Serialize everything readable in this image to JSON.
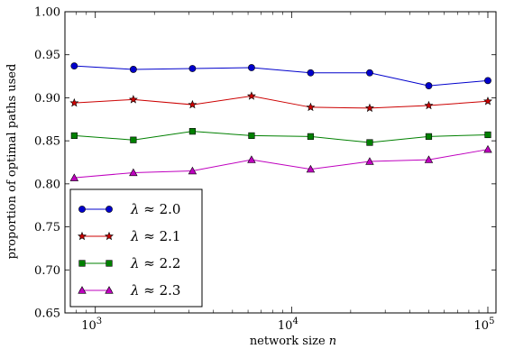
{
  "chart_data": {
    "type": "line",
    "x_scale": "log",
    "xlabel": "network size n",
    "ylabel": "proportion of optimal paths used",
    "xlim": [
      700,
      110000
    ],
    "ylim": [
      0.65,
      1.0
    ],
    "x_ticks": [
      1000,
      10000,
      100000
    ],
    "x_tick_labels": [
      {
        "base": "10",
        "exp": "3"
      },
      {
        "base": "10",
        "exp": "4"
      },
      {
        "base": "10",
        "exp": "5"
      }
    ],
    "y_ticks": [
      0.65,
      0.7,
      0.75,
      0.8,
      0.85,
      0.9,
      0.95,
      1.0
    ],
    "y_tick_labels": [
      "0.65",
      "0.70",
      "0.75",
      "0.80",
      "0.85",
      "0.90",
      "0.95",
      "1.00"
    ],
    "x": [
      781,
      1562,
      3125,
      6250,
      12500,
      25000,
      50000,
      100000
    ],
    "series": [
      {
        "name": "λ ≈ 2.0",
        "color": "#0000cc",
        "marker": "circle",
        "values": [
          0.937,
          0.933,
          0.934,
          0.935,
          0.929,
          0.929,
          0.914,
          0.92
        ]
      },
      {
        "name": "λ ≈ 2.1",
        "color": "#cc0000",
        "marker": "star",
        "values": [
          0.894,
          0.898,
          0.892,
          0.902,
          0.889,
          0.888,
          0.891,
          0.896
        ]
      },
      {
        "name": "λ ≈ 2.2",
        "color": "#008000",
        "marker": "square",
        "values": [
          0.856,
          0.851,
          0.861,
          0.856,
          0.855,
          0.848,
          0.855,
          0.857
        ]
      },
      {
        "name": "λ ≈ 2.3",
        "color": "#bf00bf",
        "marker": "triangle",
        "values": [
          0.807,
          0.813,
          0.815,
          0.828,
          0.817,
          0.826,
          0.828,
          0.84
        ]
      }
    ],
    "legend_position": "lower-left",
    "grid": false
  }
}
